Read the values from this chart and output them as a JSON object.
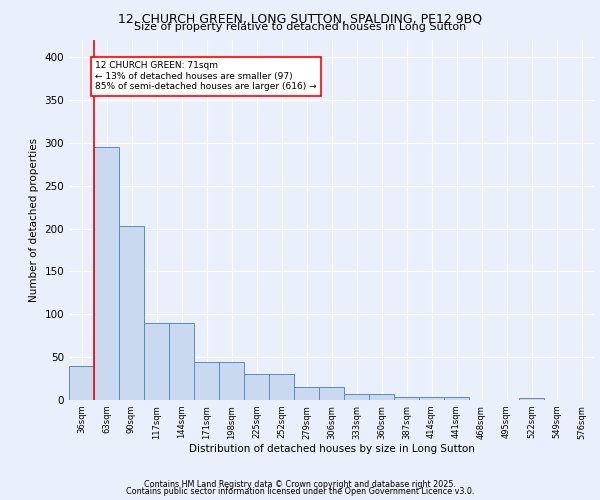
{
  "title1": "12, CHURCH GREEN, LONG SUTTON, SPALDING, PE12 9BQ",
  "title2": "Size of property relative to detached houses in Long Sutton",
  "xlabel": "Distribution of detached houses by size in Long Sutton",
  "ylabel": "Number of detached properties",
  "bin_labels": [
    "36sqm",
    "63sqm",
    "90sqm",
    "117sqm",
    "144sqm",
    "171sqm",
    "198sqm",
    "225sqm",
    "252sqm",
    "279sqm",
    "306sqm",
    "333sqm",
    "360sqm",
    "387sqm",
    "414sqm",
    "441sqm",
    "468sqm",
    "495sqm",
    "522sqm",
    "549sqm",
    "576sqm"
  ],
  "bar_heights": [
    40,
    295,
    203,
    90,
    90,
    44,
    44,
    30,
    30,
    15,
    15,
    7,
    7,
    4,
    4,
    4,
    0,
    0,
    2,
    0,
    0
  ],
  "bar_color": "#c9d9f0",
  "bar_edge_color": "#5b8ac9",
  "red_line_x": 0.5,
  "annotation_text": "12 CHURCH GREEN: 71sqm\n← 13% of detached houses are smaller (97)\n85% of semi-detached houses are larger (616) →",
  "annotation_box_color": "white",
  "annotation_box_edge": "red",
  "ylim": [
    0,
    420
  ],
  "yticks": [
    0,
    50,
    100,
    150,
    200,
    250,
    300,
    350,
    400
  ],
  "footer1": "Contains HM Land Registry data © Crown copyright and database right 2025.",
  "footer2": "Contains public sector information licensed under the Open Government Licence v3.0.",
  "bg_color": "#eaf0fb",
  "plot_bg_color": "#eaf0fb",
  "grid_color": "white"
}
